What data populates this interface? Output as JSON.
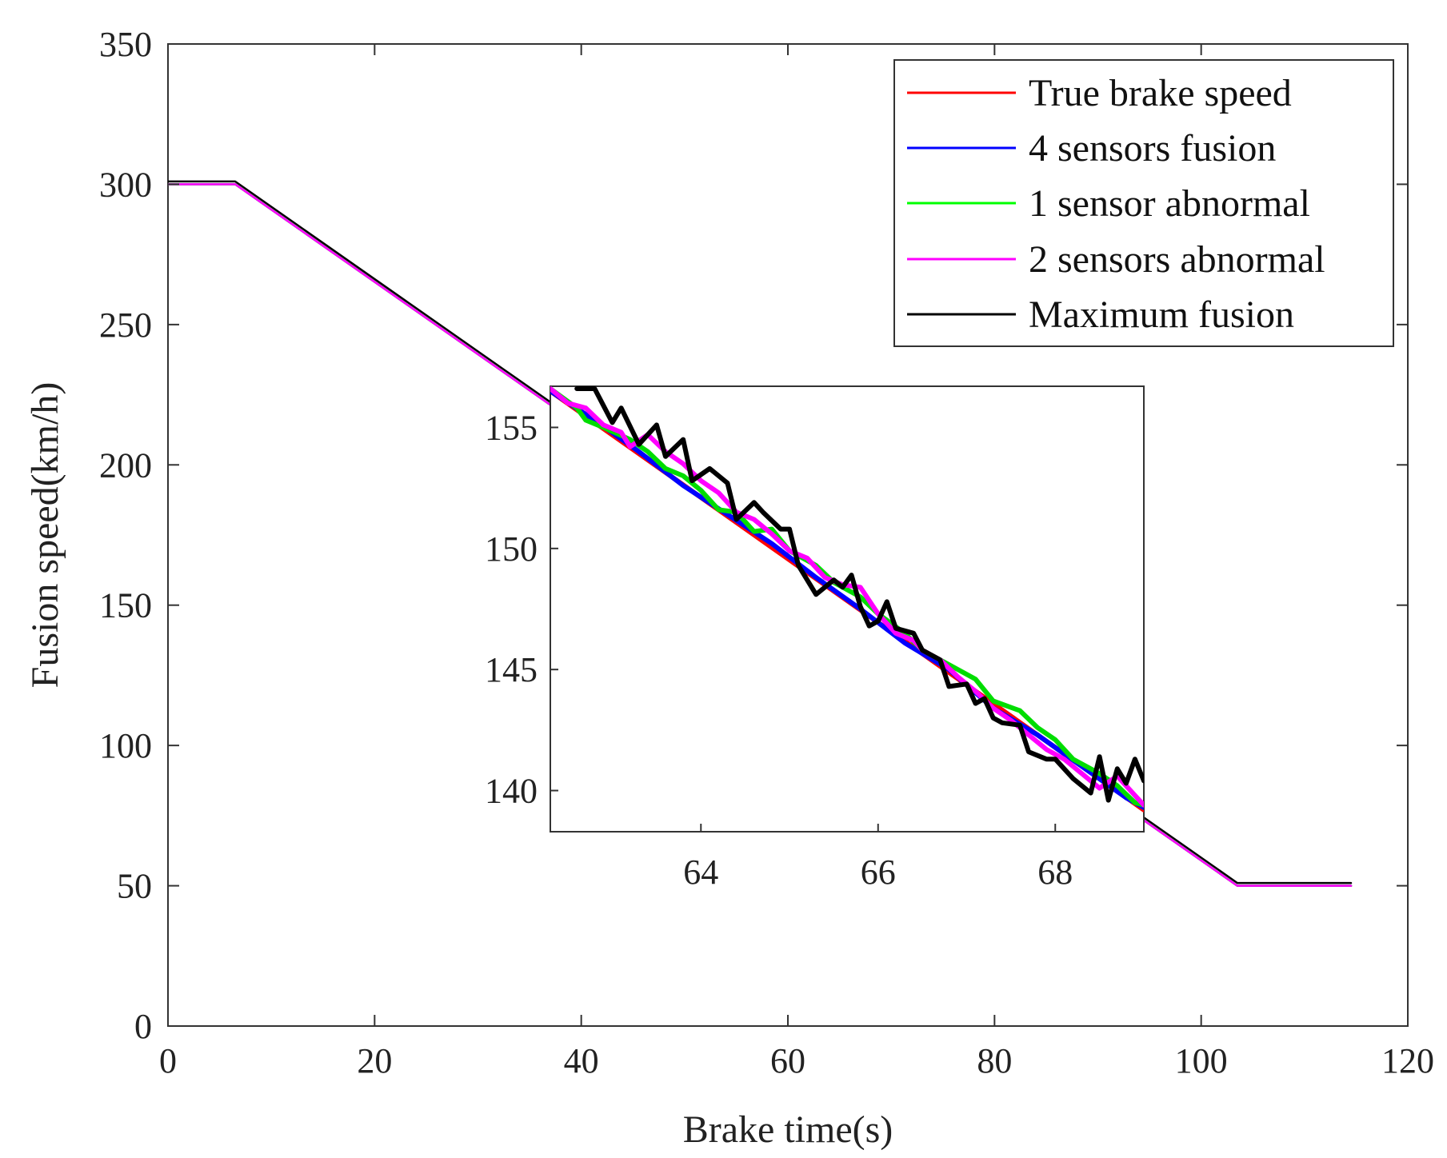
{
  "chart_data": [
    {
      "name": "main",
      "type": "line",
      "title": "",
      "xlabel": "Brake time(s)",
      "ylabel": "Fusion speed(km/h)",
      "xlim": [
        0,
        120
      ],
      "ylim": [
        0,
        350
      ],
      "xticks": [
        "0",
        "20",
        "40",
        "60",
        "80",
        "100",
        "120"
      ],
      "yticks": [
        "0",
        "50",
        "100",
        "150",
        "200",
        "250",
        "300",
        "350"
      ],
      "grid": false,
      "legend_position": "top-right",
      "legend": [
        "True brake speed",
        "4 sensors fusion",
        "1 sensor abnormal",
        "2 sensors abnormal",
        "Maximum fusion"
      ],
      "series": [
        {
          "name": "True brake speed",
          "color": "#ff0000",
          "x": [
            0,
            6.5,
            103.5,
            114.5
          ],
          "y": [
            300,
            300,
            50,
            50
          ]
        },
        {
          "name": "4 sensors fusion",
          "color": "#0000ff",
          "x": [
            0,
            6.5,
            103.5,
            114.5
          ],
          "y": [
            300,
            300,
            50,
            50
          ]
        },
        {
          "name": "1 sensor abnormal",
          "color": "#00ff00",
          "x": [
            0,
            6.5,
            103.5,
            114.5
          ],
          "y": [
            300,
            300,
            50,
            50
          ]
        },
        {
          "name": "2 sensors abnormal",
          "color": "#ff00ff",
          "x": [
            0,
            6.5,
            103.5,
            114.5
          ],
          "y": [
            300,
            300,
            50,
            50
          ]
        },
        {
          "name": "Maximum fusion",
          "color": "#000000",
          "x": [
            0,
            6.5,
            103.5,
            114.5
          ],
          "y": [
            301,
            301,
            51,
            51
          ]
        }
      ]
    },
    {
      "name": "inset",
      "type": "line",
      "xlim": [
        62.3,
        69.0
      ],
      "ylim": [
        138.3,
        156.7
      ],
      "xticks": [
        "64",
        "66",
        "68"
      ],
      "yticks": [
        "140",
        "145",
        "150",
        "155"
      ],
      "series": [
        {
          "name": "True brake speed",
          "color": "#ff0000",
          "x": [
            62.3,
            69.0
          ],
          "y": [
            156.5,
            139.2
          ]
        },
        {
          "name": "4 sensors fusion",
          "color": "#0000ff",
          "x": [
            62.3,
            62.8,
            63.3,
            63.8,
            64.3,
            64.8,
            65.3,
            65.8,
            66.3,
            66.8,
            67.3,
            67.8,
            68.3,
            68.8,
            69.0
          ],
          "y": [
            156.5,
            155.3,
            154.0,
            152.6,
            151.4,
            150.2,
            148.8,
            147.5,
            146.1,
            145.0,
            143.4,
            142.3,
            141.0,
            139.7,
            139.3
          ]
        },
        {
          "name": "1 sensor abnormal",
          "color": "#00dd00",
          "x": [
            62.3,
            62.6,
            62.7,
            62.9,
            63.2,
            63.4,
            63.6,
            63.8,
            64.0,
            64.1,
            64.2,
            64.4,
            64.6,
            64.8,
            65.0,
            65.3,
            65.5,
            65.8,
            66.0,
            66.3,
            66.5,
            66.8,
            67.1,
            67.3,
            67.6,
            67.8,
            68.0,
            68.2,
            68.5,
            68.7,
            68.9,
            69.0
          ],
          "y": [
            156.6,
            155.8,
            155.3,
            155.0,
            154.5,
            154.0,
            153.3,
            153.0,
            152.4,
            152.0,
            151.6,
            151.5,
            150.7,
            150.8,
            149.9,
            149.3,
            148.6,
            148.0,
            147.3,
            146.5,
            145.8,
            145.2,
            144.6,
            143.7,
            143.3,
            142.6,
            142.1,
            141.3,
            140.7,
            140.2,
            139.5,
            139.4
          ]
        },
        {
          "name": "2 sensors abnormal",
          "color": "#ff00ff",
          "x": [
            62.3,
            62.5,
            62.7,
            62.9,
            63.1,
            63.2,
            63.4,
            63.6,
            63.8,
            64.0,
            64.2,
            64.4,
            64.6,
            64.8,
            65.0,
            65.2,
            65.4,
            65.6,
            65.8,
            66.0,
            66.2,
            66.4,
            66.5,
            66.7,
            66.9,
            67.1,
            67.3,
            67.5,
            67.7,
            67.9,
            68.1,
            68.3,
            68.5,
            68.7,
            68.9,
            69.0
          ],
          "y": [
            156.6,
            156.0,
            155.8,
            155.1,
            154.8,
            154.2,
            154.7,
            154.0,
            153.5,
            152.8,
            152.3,
            151.5,
            151.2,
            150.6,
            149.9,
            149.6,
            148.8,
            148.5,
            148.4,
            147.3,
            146.5,
            146.2,
            145.8,
            145.4,
            144.7,
            144.1,
            143.4,
            142.9,
            142.3,
            141.7,
            141.3,
            140.7,
            140.1,
            140.6,
            139.8,
            139.4
          ]
        },
        {
          "name": "Maximum fusion",
          "color": "#000000",
          "x": [
            62.6,
            62.8,
            63.0,
            63.1,
            63.3,
            63.5,
            63.6,
            63.8,
            63.9,
            64.1,
            64.3,
            64.4,
            64.6,
            64.7,
            64.9,
            65.0,
            65.1,
            65.3,
            65.5,
            65.6,
            65.7,
            65.8,
            65.9,
            66.0,
            66.1,
            66.2,
            66.4,
            66.5,
            66.7,
            66.8,
            67.0,
            67.1,
            67.2,
            67.3,
            67.4,
            67.6,
            67.7,
            67.9,
            68.0,
            68.2,
            68.4,
            68.5,
            68.6,
            68.7,
            68.8,
            68.9,
            69.0
          ],
          "y": [
            156.6,
            156.6,
            155.2,
            155.8,
            154.3,
            155.1,
            153.8,
            154.5,
            152.8,
            153.3,
            152.7,
            151.2,
            151.9,
            151.5,
            150.8,
            150.8,
            149.3,
            148.1,
            148.7,
            148.4,
            148.9,
            147.6,
            146.8,
            147.0,
            147.8,
            146.7,
            146.5,
            145.8,
            145.4,
            144.3,
            144.4,
            143.6,
            143.8,
            143.0,
            142.8,
            142.7,
            141.6,
            141.3,
            141.3,
            140.5,
            139.9,
            141.4,
            139.6,
            140.9,
            140.3,
            141.3,
            140.4
          ]
        }
      ]
    }
  ]
}
